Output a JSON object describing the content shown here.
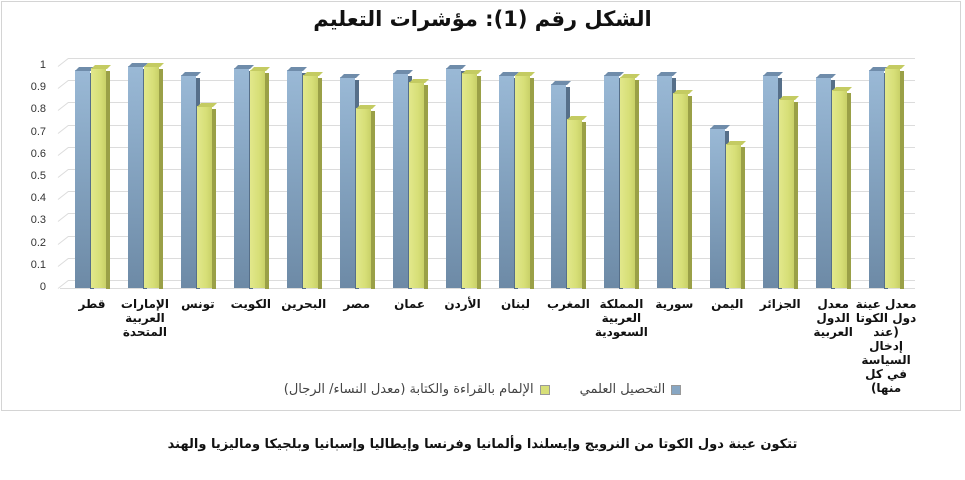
{
  "title": "الشكل رقم (1): مؤشرات التعليم",
  "legend": {
    "series_literacy": "الإلمام بالقراءة والكتابة (معدل النساء/ الرجال)",
    "series_education": "التحصيل العلمي"
  },
  "note": "تتكون عينة دول الكوتا من النرويج وإيسلندا وألمانيا وفرنسا وإيطاليا وإسبانيا وبلجيكا وماليزيا والهند",
  "colors": {
    "education": "#87a6c3",
    "literacy": "#d7df78",
    "grid": "#dcdcdc"
  },
  "chart_data": {
    "type": "bar",
    "title": "الشكل رقم (1): مؤشرات التعليم",
    "xlabel": "",
    "ylabel": "",
    "ylim": [
      0,
      1
    ],
    "yticks": [
      "0",
      "0.1",
      "0.2",
      "0.3",
      "0.4",
      "0.5",
      "0.6",
      "0.7",
      "0.8",
      "0.9",
      "1"
    ],
    "grid": true,
    "legend_position": "bottom",
    "categories": [
      "قطر",
      "الإمارات العربية المتحدة",
      "تونس",
      "الكويت",
      "البحرين",
      "مصر",
      "عمان",
      "الأردن",
      "لبنان",
      "المغرب",
      "المملكة العربية السعودية",
      "سورية",
      "اليمن",
      "الجزائر",
      "معدل الدول العربية",
      "معدل عينة دول الكوتا (عند إدخال السياسة في كل منها)"
    ],
    "series": [
      {
        "name": "التحصيل العلمي",
        "values": [
          0.98,
          1.0,
          0.96,
          0.99,
          0.98,
          0.95,
          0.97,
          0.99,
          0.96,
          0.92,
          0.96,
          0.96,
          0.72,
          0.96,
          0.95,
          0.98
        ]
      },
      {
        "name": "الإلمام بالقراءة والكتابة (معدل النساء/ الرجال)",
        "values": [
          0.99,
          1.0,
          0.82,
          0.98,
          0.96,
          0.81,
          0.93,
          0.97,
          0.96,
          0.76,
          0.95,
          0.88,
          0.65,
          0.85,
          0.89,
          0.99
        ]
      }
    ]
  }
}
